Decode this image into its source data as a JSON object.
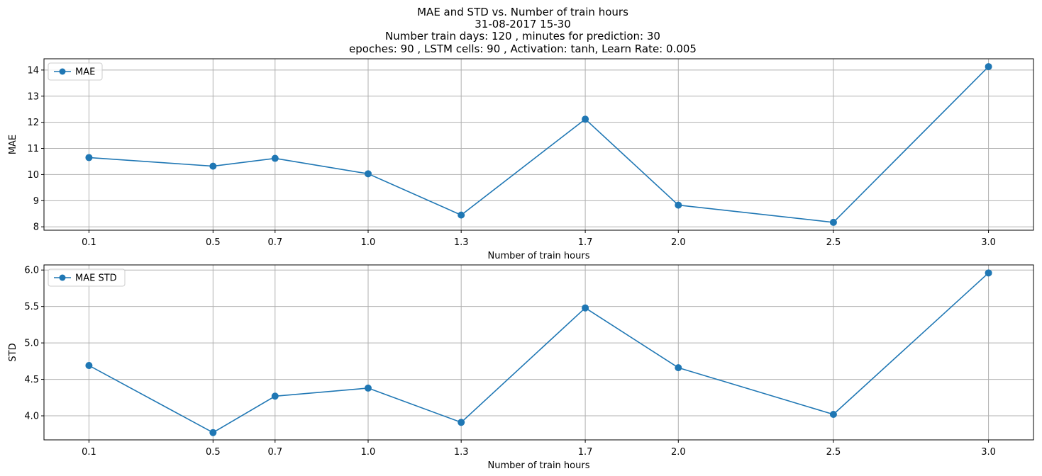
{
  "chart_data": {
    "title_lines": [
      "MAE and STD vs. Number of train hours",
      "31-08-2017 15-30",
      "Number train days: 120 , minutes for prediction: 30",
      "epoches: 90 , LSTM cells: 90 , Activation: tanh, Learn Rate: 0.005"
    ],
    "line_color": "#1f77b4",
    "grid_color": "#b0b0b0",
    "grid": true,
    "subplots": [
      {
        "type": "line",
        "xlabel": "Number of train hours",
        "ylabel": "MAE",
        "legend": "MAE",
        "legend_position": "upper-left",
        "x": [
          0.1,
          0.5,
          0.7,
          1.0,
          1.3,
          1.7,
          2.0,
          2.5,
          3.0
        ],
        "x_tick_labels": [
          "0.1",
          "0.5",
          "0.7",
          "1.0",
          "1.3",
          "1.7",
          "2.0",
          "2.5",
          "3.0"
        ],
        "y": [
          10.65,
          10.32,
          10.62,
          10.03,
          8.45,
          12.12,
          8.83,
          8.17,
          14.13
        ],
        "xlim": [
          -0.045,
          3.145
        ],
        "ylim": [
          7.87,
          14.43
        ],
        "yticks": [
          8,
          9,
          10,
          11,
          12,
          13,
          14
        ],
        "ytick_labels": [
          "8",
          "9",
          "10",
          "11",
          "12",
          "13",
          "14"
        ]
      },
      {
        "type": "line",
        "xlabel": "Number of train hours",
        "ylabel": "STD",
        "legend": "MAE STD",
        "legend_position": "upper-left",
        "x": [
          0.1,
          0.5,
          0.7,
          1.0,
          1.3,
          1.7,
          2.0,
          2.5,
          3.0
        ],
        "x_tick_labels": [
          "0.1",
          "0.5",
          "0.7",
          "1.0",
          "1.3",
          "1.7",
          "2.0",
          "2.5",
          "3.0"
        ],
        "y": [
          4.69,
          3.77,
          4.27,
          4.38,
          3.91,
          5.48,
          4.66,
          4.02,
          5.96
        ],
        "xlim": [
          -0.045,
          3.145
        ],
        "ylim": [
          3.67,
          6.07
        ],
        "yticks": [
          4.0,
          4.5,
          5.0,
          5.5,
          6.0
        ],
        "ytick_labels": [
          "4.0",
          "4.5",
          "5.0",
          "5.5",
          "6.0"
        ]
      }
    ]
  }
}
